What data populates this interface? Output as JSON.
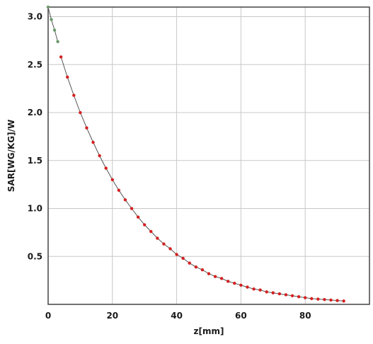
{
  "chart_data": {
    "type": "line",
    "xlabel": "z[mm]",
    "ylabel": "SAR[WG/KG]/W",
    "xlim": [
      0,
      100
    ],
    "ylim": [
      0,
      3.1
    ],
    "xticks": [
      "0",
      "20",
      "40",
      "60",
      "80"
    ],
    "yticks": [
      "0.5",
      "1.0",
      "1.5",
      "2.0",
      "2.5",
      "3.0"
    ],
    "xtick_values": [
      0,
      20,
      40,
      60,
      80
    ],
    "ytick_values": [
      0.5,
      1.0,
      1.5,
      2.0,
      2.5,
      3.0
    ],
    "grid": true,
    "series": [
      {
        "color": "#6a9a6a",
        "x": [
          0,
          1,
          2,
          3
        ],
        "y": [
          3.1,
          2.97,
          2.86,
          2.74
        ]
      },
      {
        "color": "#d42020",
        "x": [
          4,
          6,
          8,
          10,
          12,
          14,
          16,
          18,
          20,
          22,
          24,
          26,
          28,
          30,
          32,
          34,
          36,
          38,
          40,
          42,
          44,
          46,
          48,
          50,
          52,
          54,
          56,
          58,
          60,
          62,
          64,
          66,
          68,
          70,
          72,
          74,
          76,
          78,
          80,
          82,
          84,
          86,
          88,
          90,
          92
        ],
        "y": [
          2.58,
          2.37,
          2.18,
          2.0,
          1.84,
          1.69,
          1.55,
          1.42,
          1.3,
          1.19,
          1.09,
          1.0,
          0.91,
          0.83,
          0.76,
          0.69,
          0.63,
          0.58,
          0.52,
          0.48,
          0.43,
          0.39,
          0.36,
          0.32,
          0.29,
          0.27,
          0.24,
          0.22,
          0.2,
          0.18,
          0.16,
          0.15,
          0.13,
          0.12,
          0.11,
          0.1,
          0.09,
          0.08,
          0.07,
          0.06,
          0.055,
          0.05,
          0.045,
          0.04,
          0.035
        ]
      }
    ]
  }
}
